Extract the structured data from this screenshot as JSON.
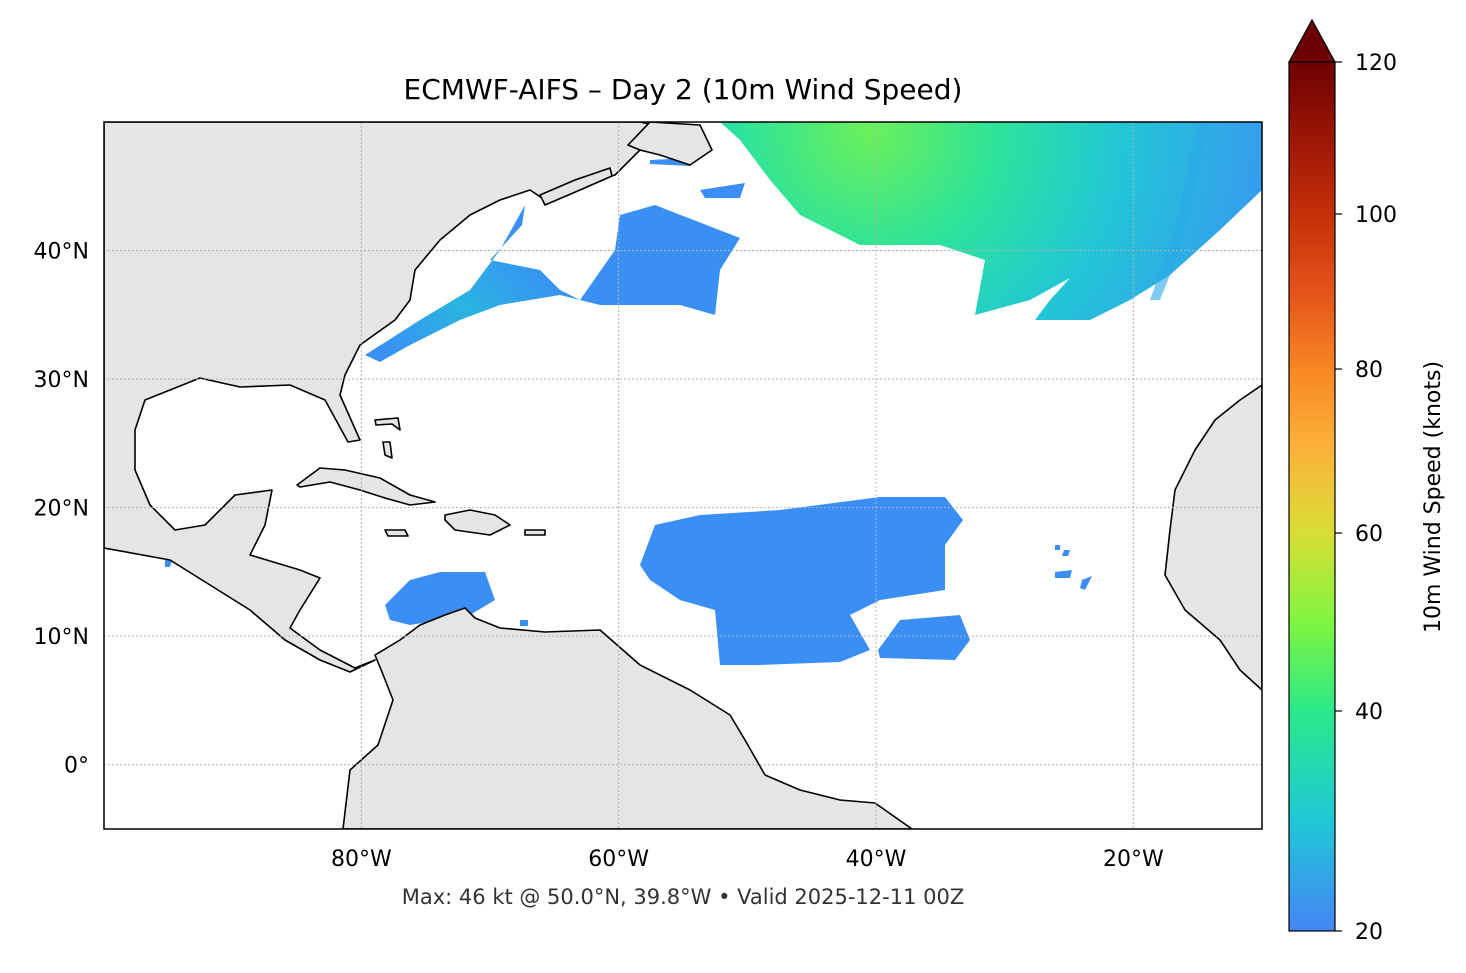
{
  "title": "ECMWF-AIFS – Day 2 (10m Wind Speed)",
  "footer": "Max: 46 kt @ 50.0°N, 39.8°W • Valid 2025-12-11 00Z",
  "map": {
    "extent": {
      "lon": [
        -100,
        -10
      ],
      "lat": [
        -5,
        50
      ]
    },
    "lon_ticks": [
      {
        "value": -80,
        "label": "80°W"
      },
      {
        "value": -60,
        "label": "60°W"
      },
      {
        "value": -40,
        "label": "40°W"
      },
      {
        "value": -20,
        "label": "20°W"
      }
    ],
    "lat_ticks": [
      {
        "value": 0,
        "label": "0°"
      },
      {
        "value": 10,
        "label": "10°N"
      },
      {
        "value": 20,
        "label": "20°N"
      },
      {
        "value": 30,
        "label": "30°N"
      },
      {
        "value": 40,
        "label": "40°N"
      }
    ],
    "gridlines": true,
    "land_color": "#e5e5e5",
    "threshold_kt": 20
  },
  "colorbar": {
    "label": "10m Wind Speed (knots)",
    "range": [
      20,
      120
    ],
    "extend": "max",
    "ticks": [
      {
        "value": 20,
        "label": "20"
      },
      {
        "value": 40,
        "label": "40"
      },
      {
        "value": 60,
        "label": "60"
      },
      {
        "value": 80,
        "label": "80"
      },
      {
        "value": 100,
        "label": "100"
      },
      {
        "value": 120,
        "label": "120"
      }
    ],
    "colors": [
      "#4585f5",
      "#1fc8d6",
      "#2ae98a",
      "#80f540",
      "#d8de35",
      "#fbb33a",
      "#f78623",
      "#e4531a",
      "#c52f08",
      "#9b1605",
      "#6d0202"
    ]
  }
}
